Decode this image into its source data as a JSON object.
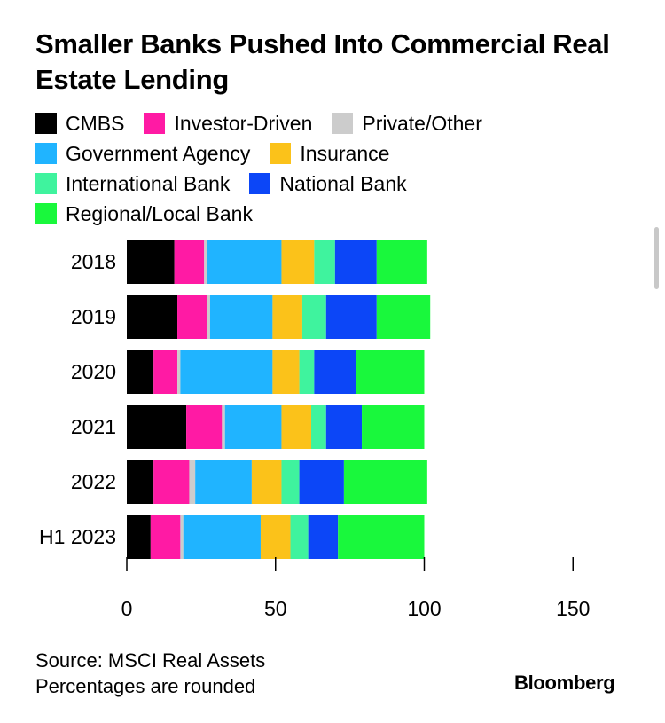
{
  "chart_data": {
    "type": "bar",
    "orientation": "horizontal",
    "stacked": true,
    "title": "Smaller Banks Pushed Into Commercial Real Estate Lending",
    "categories": [
      "2018",
      "2019",
      "2020",
      "2021",
      "2022",
      "H1 2023"
    ],
    "xlim": [
      0,
      150
    ],
    "xticks": [
      0,
      50,
      100,
      150
    ],
    "series": [
      {
        "name": "CMBS",
        "color": "#000000",
        "values": [
          16,
          17,
          9,
          20,
          9,
          8
        ]
      },
      {
        "name": "Investor-Driven",
        "color": "#ff1aa4",
        "values": [
          10,
          10,
          8,
          12,
          12,
          10
        ]
      },
      {
        "name": "Private/Other",
        "color": "#cccccc",
        "values": [
          1,
          1,
          1,
          1,
          2,
          1
        ]
      },
      {
        "name": "Government Agency",
        "color": "#20b4ff",
        "values": [
          25,
          21,
          31,
          19,
          19,
          26
        ]
      },
      {
        "name": "Insurance",
        "color": "#fbc21a",
        "values": [
          11,
          10,
          9,
          10,
          10,
          10
        ]
      },
      {
        "name": "International Bank",
        "color": "#3ff39e",
        "values": [
          7,
          8,
          5,
          5,
          6,
          6
        ]
      },
      {
        "name": "National Bank",
        "color": "#0c46f7",
        "values": [
          14,
          17,
          14,
          12,
          15,
          10
        ]
      },
      {
        "name": "Regional/Local Bank",
        "color": "#19f83c",
        "values": [
          17,
          18,
          23,
          21,
          28,
          29
        ]
      }
    ]
  },
  "title": "Smaller Banks Pushed Into Commercial Real Estate Lending",
  "source": "Source: MSCI Real Assets",
  "note": "Percentages are rounded",
  "brand": "Bloomberg"
}
